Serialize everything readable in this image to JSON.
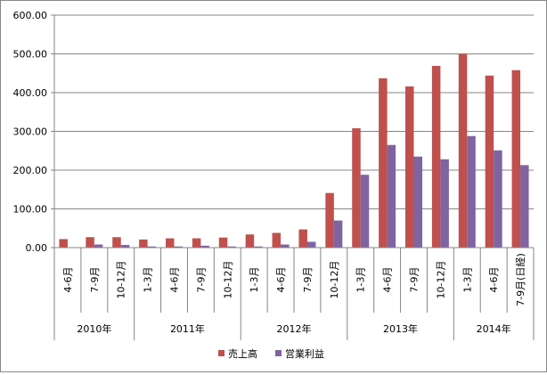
{
  "chart_data": {
    "type": "bar",
    "title": "",
    "xlabel": "",
    "ylabel": "",
    "ylim": [
      0,
      600
    ],
    "yticks": [
      "0.00",
      "100.00",
      "200.00",
      "300.00",
      "400.00",
      "500.00",
      "600.00"
    ],
    "grid": true,
    "legend_position": "bottom",
    "categories": [
      "4-6月",
      "7-9月",
      "10-12月",
      "1-3月",
      "4-6月",
      "7-9月",
      "10-12月",
      "1-3月",
      "4-6月",
      "7-9月",
      "10-12月",
      "1-3月",
      "4-6月",
      "7-9月",
      "10-12月",
      "1-3月",
      "4-6月",
      "7-9月(日経)"
    ],
    "years": [
      {
        "label": "2010年",
        "count": 3
      },
      {
        "label": "2011年",
        "count": 4
      },
      {
        "label": "2012年",
        "count": 4
      },
      {
        "label": "2013年",
        "count": 4
      },
      {
        "label": "2014年",
        "count": 3
      }
    ],
    "series": [
      {
        "name": "売上高",
        "color": "#c0504d",
        "values": [
          22,
          27,
          27,
          21,
          24,
          24,
          26,
          34,
          38,
          47,
          141,
          308,
          437,
          416,
          469,
          500,
          444,
          458
        ]
      },
      {
        "name": "営業利益",
        "color": "#8064a2",
        "values": [
          1,
          8,
          7,
          3,
          3,
          5,
          3,
          3,
          8,
          15,
          70,
          188,
          265,
          235,
          228,
          288,
          251,
          213
        ]
      }
    ]
  }
}
